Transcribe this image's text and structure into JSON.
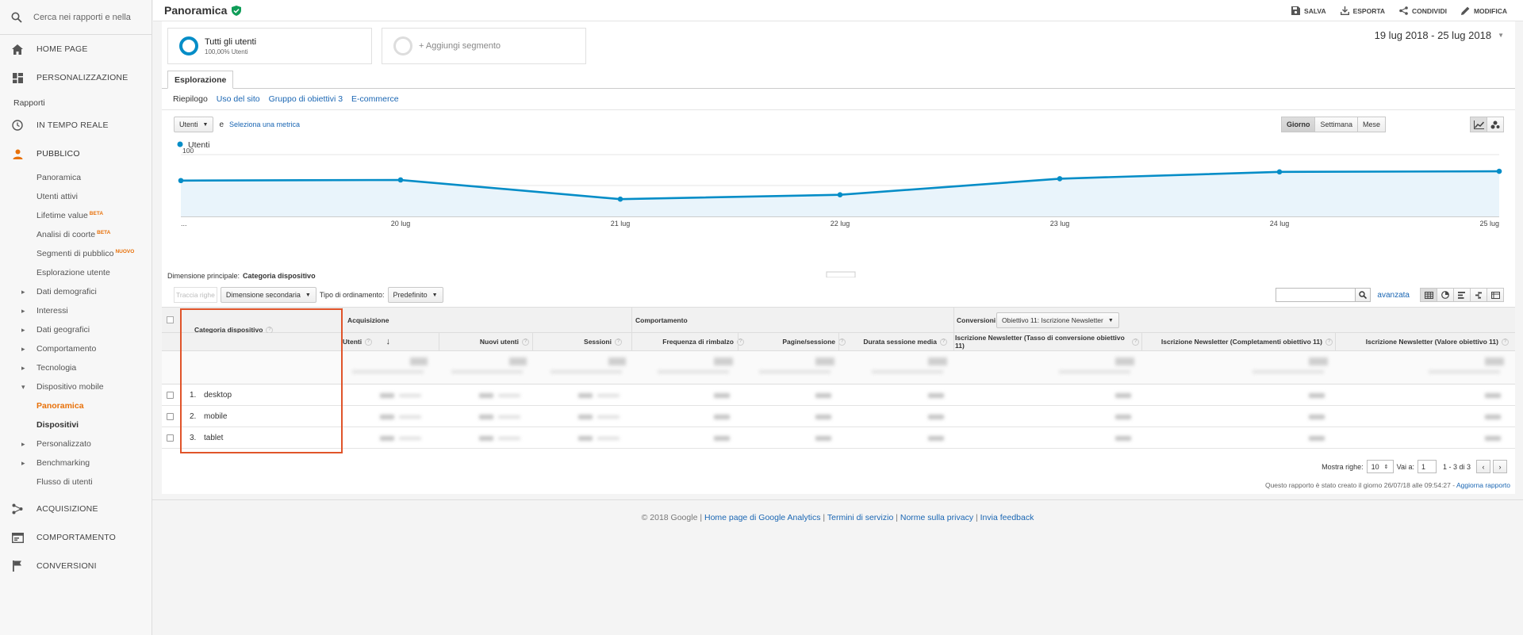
{
  "sidebar": {
    "search_placeholder": "Cerca nei rapporti e nella Gu",
    "top": [
      {
        "label": "HOME PAGE",
        "icon": "home-icon"
      },
      {
        "label": "PERSONALIZZAZIONE",
        "icon": "dashboard-icon"
      }
    ],
    "section_label": "Rapporti",
    "realtime": {
      "label": "IN TEMPO REALE",
      "icon": "clock-icon"
    },
    "audience": {
      "label": "PUBBLICO",
      "icon": "person-icon"
    },
    "audience_items": [
      {
        "label": "Panoramica",
        "badge": ""
      },
      {
        "label": "Utenti attivi",
        "badge": ""
      },
      {
        "label": "Lifetime value",
        "badge": "BETA"
      },
      {
        "label": "Analisi di coorte",
        "badge": "BETA"
      },
      {
        "label": "Segmenti di pubblico",
        "badge": "NUOVO"
      },
      {
        "label": "Esplorazione utente",
        "badge": ""
      },
      {
        "label": "Dati demografici",
        "badge": ""
      },
      {
        "label": "Interessi",
        "badge": ""
      },
      {
        "label": "Dati geografici",
        "badge": ""
      },
      {
        "label": "Comportamento",
        "badge": ""
      },
      {
        "label": "Tecnologia",
        "badge": ""
      },
      {
        "label": "Dispositivo mobile",
        "badge": ""
      },
      {
        "label": "Panoramica",
        "badge": ""
      },
      {
        "label": "Dispositivi",
        "badge": ""
      },
      {
        "label": "Personalizzato",
        "badge": ""
      },
      {
        "label": "Benchmarking",
        "badge": ""
      },
      {
        "label": "Flusso di utenti",
        "badge": ""
      }
    ],
    "bottom": [
      {
        "label": "ACQUISIZIONE",
        "icon": "acquisition-icon"
      },
      {
        "label": "COMPORTAMENTO",
        "icon": "behavior-icon"
      },
      {
        "label": "CONVERSIONI",
        "icon": "flag-icon"
      }
    ]
  },
  "header": {
    "title": "Panoramica",
    "actions": {
      "save": "SALVA",
      "export": "ESPORTA",
      "share": "CONDIVIDI",
      "edit": "MODIFICA"
    }
  },
  "segments": {
    "active_name": "Tutti gli utenti",
    "active_sub": "100,00% Utenti",
    "add_label": "+ Aggiungi segmento"
  },
  "date_range": "19 lug 2018 - 25 lug 2018",
  "tabs": {
    "main": "Esplorazione",
    "sub": [
      "Riepilogo",
      "Uso del sito",
      "Gruppo di obiettivi 3",
      "E-commerce"
    ]
  },
  "metric": {
    "selected": "Utenti",
    "conj": "e",
    "select_link": "Seleziona una metrica"
  },
  "time_buttons": [
    "Giorno",
    "Settimana",
    "Mese"
  ],
  "colors": {
    "accent": "#e8710a",
    "line": "#058dc7",
    "area": "#e9f4fb",
    "link": "#1a66b3",
    "highlight": "#e0542a"
  },
  "chart_data": {
    "type": "area",
    "legend": "Utenti",
    "x": [
      "...",
      "20 lug",
      "21 lug",
      "22 lug",
      "23 lug",
      "24 lug",
      "25 lug"
    ],
    "values": [
      58,
      59,
      28,
      35,
      61,
      72,
      73
    ],
    "y_ticks": [
      "100",
      "50"
    ],
    "ylim": [
      0,
      100
    ]
  },
  "table_tools": {
    "dimension_label": "Dimensione principale:",
    "dimension_value": "Categoria dispositivo",
    "plot_rows": "Traccia righe",
    "secondary": "Dimensione secondaria",
    "sort_label": "Tipo di ordinamento:",
    "sort_value": "Predefinito",
    "advanced": "avanzata"
  },
  "table": {
    "group_acq": "Acquisizione",
    "group_beh": "Comportamento",
    "group_conv": "Conversioni",
    "goal_select": "Obiettivo 11: Iscrizione Newsletter",
    "dim_header": "Categoria dispositivo",
    "columns": [
      "Utenti",
      "Nuovi utenti",
      "Sessioni",
      "Frequenza di rimbalzo",
      "Pagine/sessione",
      "Durata sessione media",
      "Iscrizione Newsletter (Tasso di conversione obiettivo 11)",
      "Iscrizione Newsletter (Completamenti obiettivo 11)",
      "Iscrizione Newsletter (Valore obiettivo 11)"
    ],
    "rows": [
      {
        "idx": "1.",
        "label": "desktop"
      },
      {
        "idx": "2.",
        "label": "mobile"
      },
      {
        "idx": "3.",
        "label": "tablet"
      }
    ]
  },
  "paging": {
    "show_rows": "Mostra righe:",
    "rows_value": "10",
    "goto": "Vai a:",
    "goto_value": "1",
    "range": "1 - 3 di 3"
  },
  "created": {
    "text": "Questo rapporto è stato creato il giorno 26/07/18 alle 09:54:27 - ",
    "link": "Aggiorna rapporto"
  },
  "footer": {
    "copyright": "© 2018 Google",
    "links": [
      "Home page di Google Analytics",
      "Termini di servizio",
      "Norme sulla privacy",
      "Invia feedback"
    ]
  }
}
